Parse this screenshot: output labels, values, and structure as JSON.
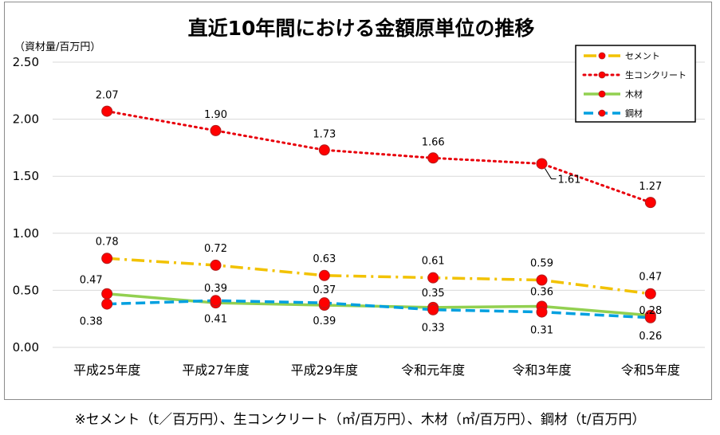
{
  "chart_data": {
    "type": "line",
    "title": "直近10年間における金額原単位の推移",
    "ylabel": "（資材量/百万円）",
    "ylim": [
      0,
      2.5
    ],
    "yticks": [
      "0.00",
      "0.50",
      "1.00",
      "1.50",
      "2.00",
      "2.50"
    ],
    "categories": [
      "平成25年度",
      "平成27年度",
      "平成29年度",
      "令和元年度",
      "令和3年度",
      "令和5年度"
    ],
    "grid": true,
    "legend_position": "top-right",
    "series": [
      {
        "name": "セメント",
        "values": [
          0.78,
          0.72,
          0.63,
          0.61,
          0.59,
          0.47
        ],
        "labels": [
          "0.78",
          "0.72",
          "0.63",
          "0.61",
          "0.59",
          "0.47"
        ],
        "color": "#f2c200",
        "line_style": "dash-dot"
      },
      {
        "name": "生コンクリート",
        "values": [
          2.07,
          1.9,
          1.73,
          1.66,
          1.61,
          1.27
        ],
        "labels": [
          "2.07",
          "1.90",
          "1.73",
          "1.66",
          "1.61",
          "1.27"
        ],
        "color": "#e8000b",
        "line_style": "dotted"
      },
      {
        "name": "木材",
        "values": [
          0.47,
          0.39,
          0.37,
          0.35,
          0.36,
          0.28
        ],
        "labels": [
          "0.47",
          "0.39",
          "0.37",
          "0.35",
          "0.36",
          "0.28"
        ],
        "color": "#92d050",
        "line_style": "solid"
      },
      {
        "name": "鋼材",
        "values": [
          0.38,
          0.41,
          0.39,
          0.33,
          0.31,
          0.26
        ],
        "labels": [
          "0.38",
          "0.41",
          "0.39",
          "0.33",
          "0.31",
          "0.26"
        ],
        "color": "#00a0e0",
        "line_style": "dashed"
      }
    ],
    "marker_color": "#ff0000"
  },
  "footnote": "※セメント（t／百万円）、生コンクリート（㎥/百万円）、木材（㎥/百万円）、鋼材（t/百万円）"
}
